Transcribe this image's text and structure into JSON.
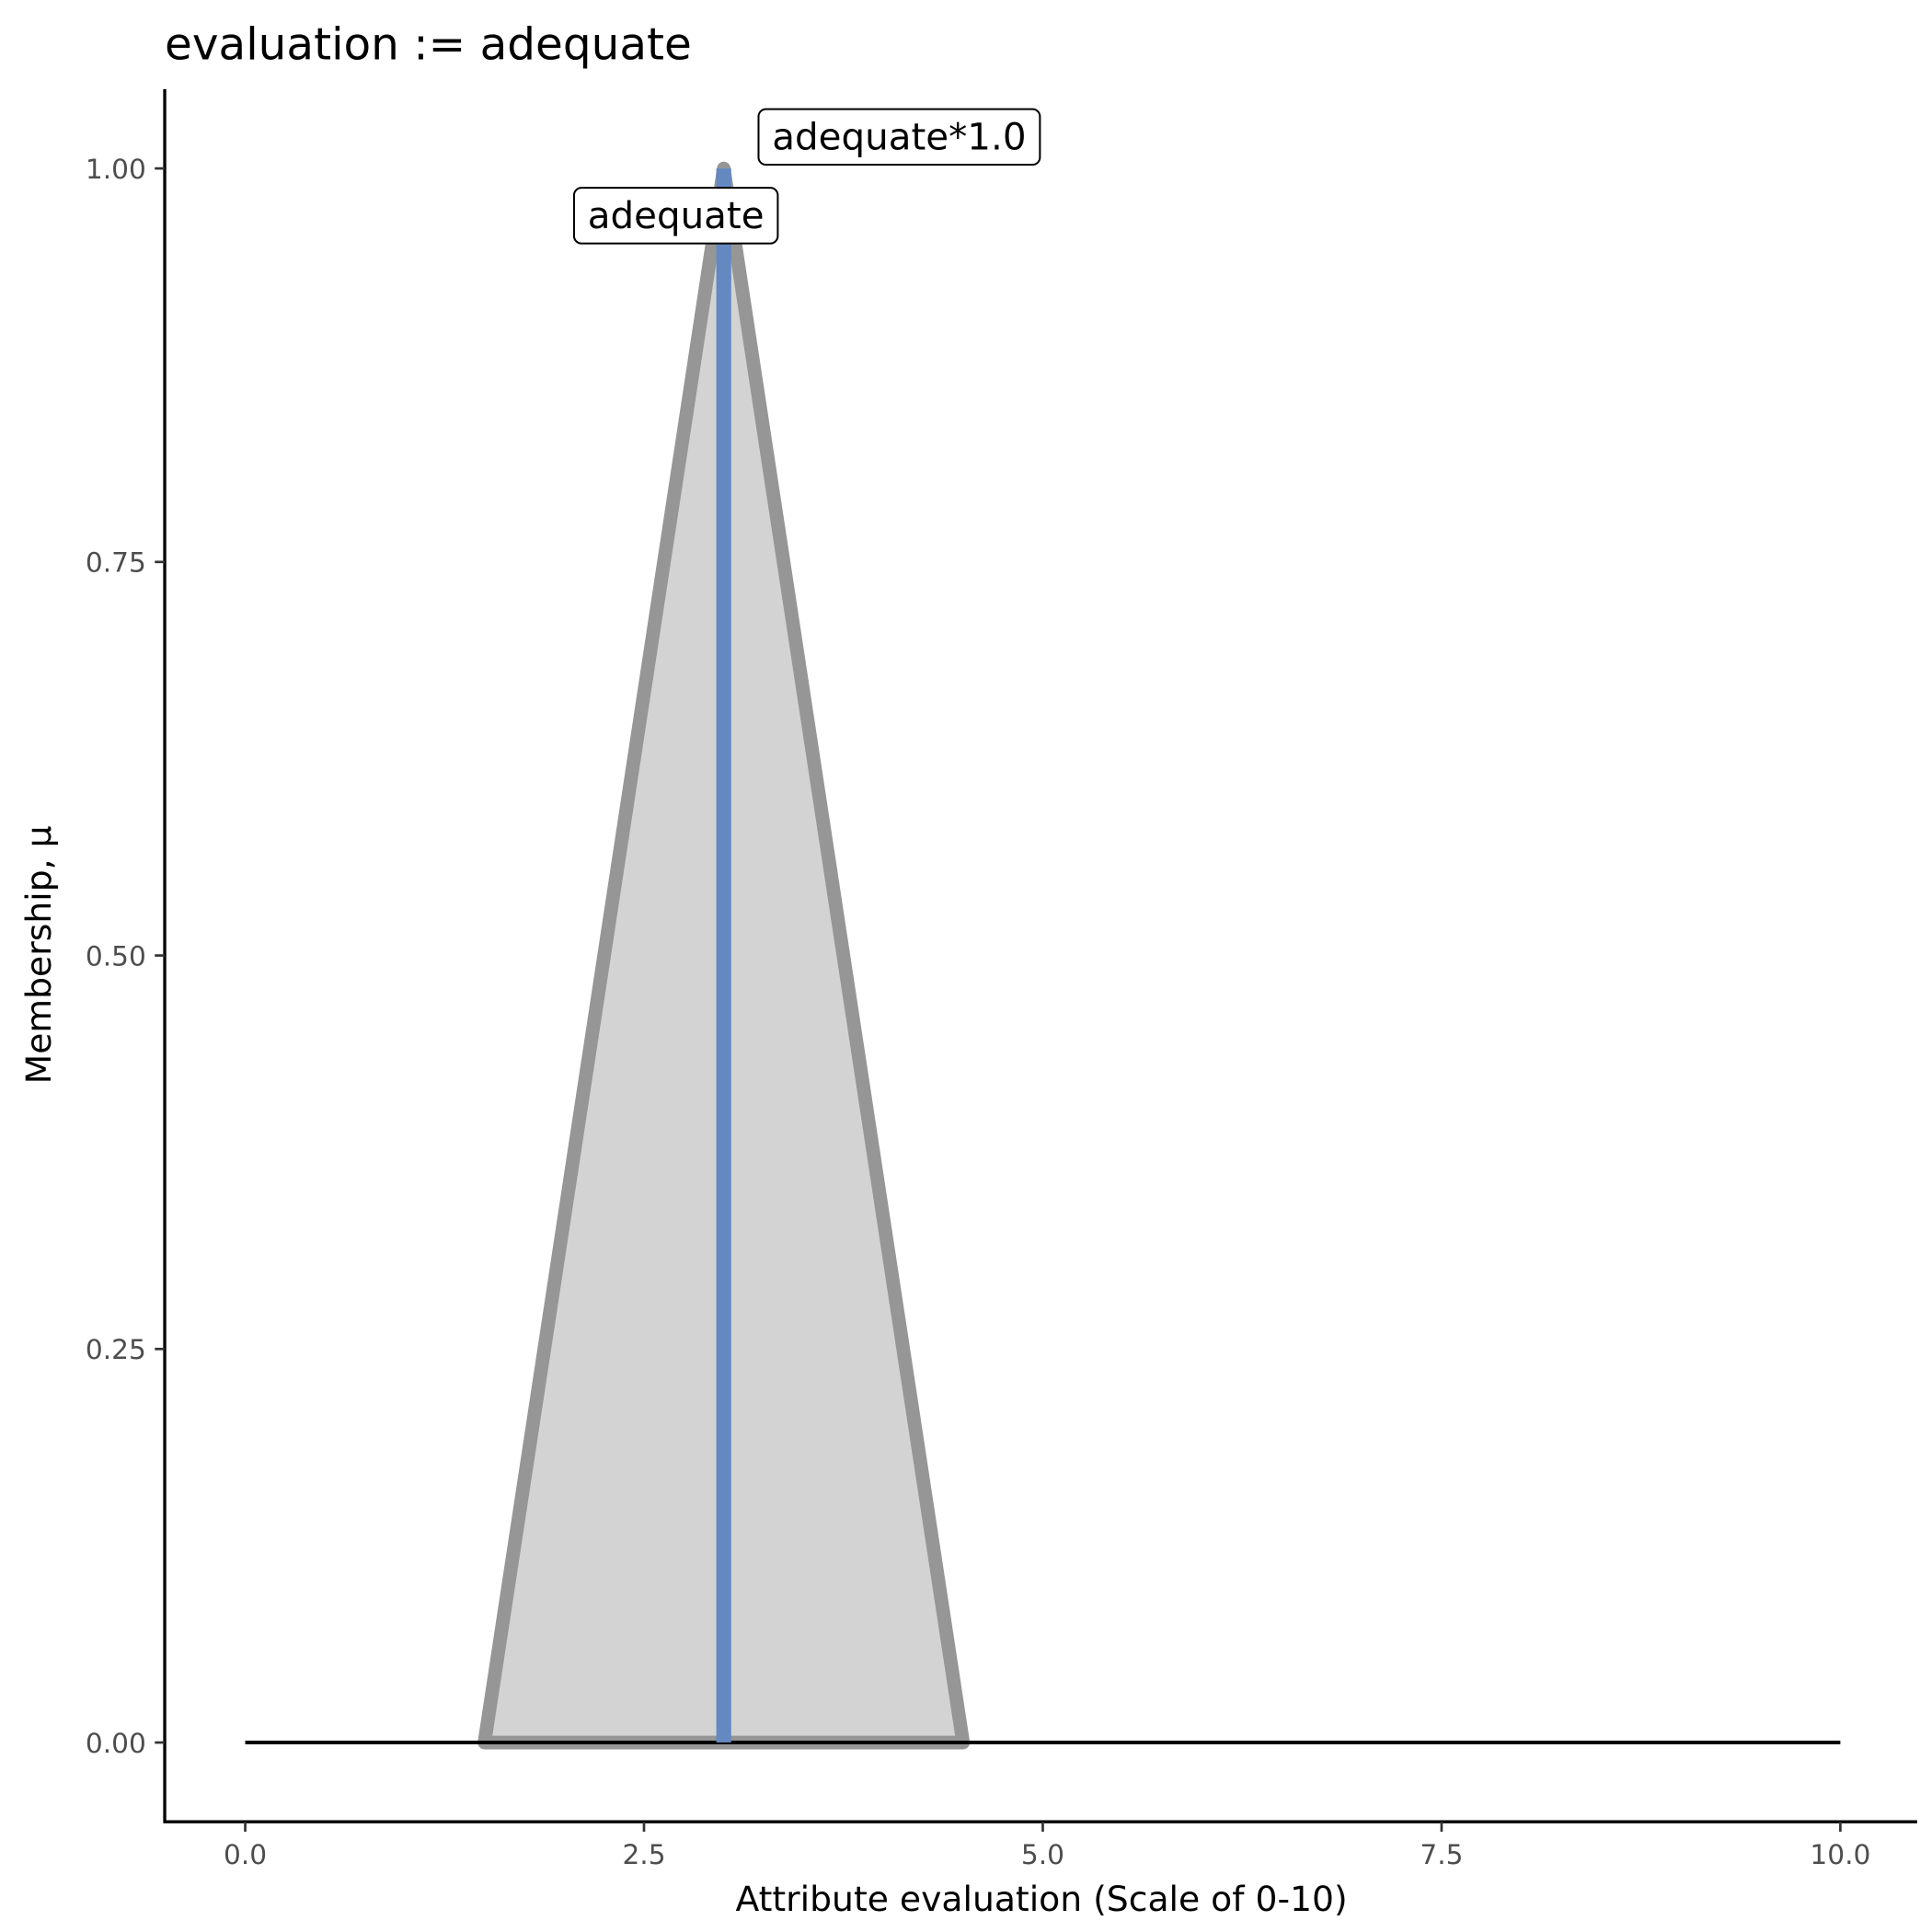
{
  "chart_data": {
    "type": "area",
    "title": "evaluation := adequate",
    "xlabel": "Attribute evaluation (Scale of 0-10)",
    "ylabel": "Membership, μ",
    "xlim": [
      -0.5,
      10.5
    ],
    "ylim": [
      -0.05,
      1.05
    ],
    "x_ticks": [
      "0.0",
      "2.5",
      "5.0",
      "7.5",
      "10.0"
    ],
    "y_ticks": [
      "0.00",
      "0.25",
      "0.50",
      "0.75",
      "1.00"
    ],
    "grid": false,
    "series": [
      {
        "name": "adequate",
        "x": [
          1.5,
          3,
          4.5
        ],
        "y": [
          0,
          1,
          0
        ],
        "fill": "#d3d3d3",
        "stroke": "#969696"
      }
    ],
    "baseline": {
      "x": [
        0,
        10
      ],
      "y": 0,
      "color": "#000000"
    },
    "evaluation_line": {
      "x": 3,
      "y": [
        0,
        1
      ],
      "color": "#6488c0"
    },
    "annotations": [
      {
        "text": "adequate",
        "x": 2.7,
        "y": 0.97
      },
      {
        "text": "adequate*1.0",
        "x": 4.1,
        "y": 1.02
      }
    ]
  }
}
